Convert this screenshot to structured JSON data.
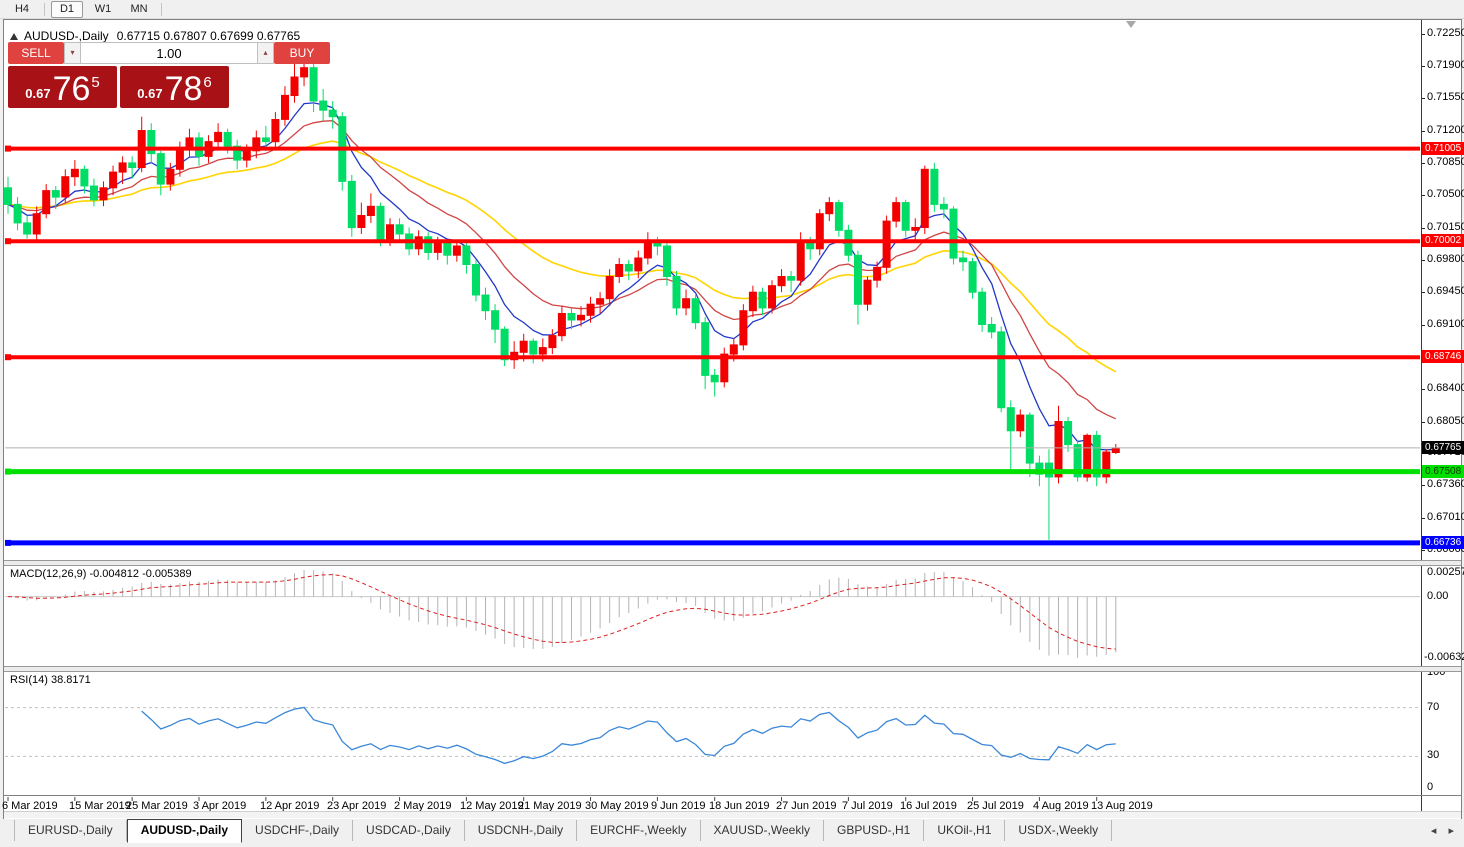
{
  "toolbar": {
    "timeframes": [
      {
        "label": "H4",
        "active": false
      },
      {
        "label": "D1",
        "active": true
      },
      {
        "label": "W1",
        "active": false
      },
      {
        "label": "MN",
        "active": false
      }
    ]
  },
  "title": {
    "symbol": "AUDUSD-,Daily",
    "ohlc": "0.67715 0.67807 0.67699 0.67765"
  },
  "trade_panel": {
    "sell_label": "SELL",
    "buy_label": "BUY",
    "volume": "1.00",
    "sell_price_prefix": "0.67",
    "sell_price_big": "76",
    "sell_price_sup": "5",
    "buy_price_prefix": "0.67",
    "buy_price_big": "78",
    "buy_price_sup": "6"
  },
  "indicators": {
    "macd_label": "MACD(12,26,9) -0.004812 -0.005389",
    "rsi_label": "RSI(14) 38.8171"
  },
  "tabs": {
    "items": [
      {
        "label": "EURUSD-,Daily",
        "active": false
      },
      {
        "label": "AUDUSD-,Daily",
        "active": true
      },
      {
        "label": "USDCHF-,Daily",
        "active": false
      },
      {
        "label": "USDCAD-,Daily",
        "active": false
      },
      {
        "label": "USDCNH-,Daily",
        "active": false
      },
      {
        "label": "EURCHF-,Weekly",
        "active": false
      },
      {
        "label": "XAUUSD-,Weekly",
        "active": false
      },
      {
        "label": "GBPUSD-,H1",
        "active": false
      },
      {
        "label": "UKOil-,H1",
        "active": false
      },
      {
        "label": "USDX-,Weekly",
        "active": false
      }
    ],
    "scroll_left": "◂",
    "scroll_right": "▸"
  },
  "chart_data": {
    "type": "candlestick",
    "symbol": "AUDUSD-",
    "timeframe": "Daily",
    "ohlc_display": {
      "open": 0.67715,
      "high": 0.67807,
      "low": 0.67699,
      "close": 0.67765
    },
    "bid": 0.67765,
    "ask": 0.67786,
    "up_color": "#f20000",
    "down_color": "#00dd66",
    "price_axis_ticks": [
      0.7225,
      0.719,
      0.7155,
      0.712,
      0.7085,
      0.705,
      0.7015,
      0.698,
      0.6945,
      0.691,
      0.684,
      0.6805,
      0.6771,
      0.6736,
      0.6701,
      0.6666
    ],
    "hlines": [
      {
        "price": 0.71005,
        "label": "0.71005",
        "color": "#ff0000",
        "text_color": "#ffffff",
        "width": 4
      },
      {
        "price": 0.70002,
        "label": "0.70002",
        "color": "#ff0000",
        "text_color": "#ffffff",
        "width": 4
      },
      {
        "price": 0.68746,
        "label": "0.68746",
        "color": "#ff0000",
        "text_color": "#ffffff",
        "width": 4
      },
      {
        "price": 0.67508,
        "label": "0.67508",
        "color": "#00e000",
        "text_color": "#103300",
        "width": 5
      },
      {
        "price": 0.66736,
        "label": "0.66736",
        "color": "#0000ff",
        "text_color": "#ffffff",
        "width": 5
      }
    ],
    "current_price_line": {
      "price": 0.67765,
      "label": "0.67765",
      "line_color": "#b0b0b0",
      "label_bg": "#000000",
      "text_color": "#ffffff"
    },
    "moving_averages": [
      {
        "name": "fast",
        "color": "#2038c8",
        "period": 7
      },
      {
        "name": "medium",
        "color": "#d04545",
        "period": 15
      },
      {
        "name": "slow",
        "color": "#ffd400",
        "period": 30
      }
    ],
    "candle_scale": 0.0001,
    "candles": [
      [
        7058,
        7070,
        7030,
        7040
      ],
      [
        7040,
        7048,
        7012,
        7020
      ],
      [
        7020,
        7028,
        7003,
        7008
      ],
      [
        7008,
        7038,
        7000,
        7030
      ],
      [
        7030,
        7062,
        7025,
        7055
      ],
      [
        7055,
        7060,
        7035,
        7048
      ],
      [
        7048,
        7078,
        7042,
        7070
      ],
      [
        7070,
        7088,
        7060,
        7078
      ],
      [
        7078,
        7082,
        7052,
        7060
      ],
      [
        7060,
        7068,
        7038,
        7045
      ],
      [
        7045,
        7065,
        7038,
        7058
      ],
      [
        7058,
        7082,
        7050,
        7075
      ],
      [
        7075,
        7092,
        7062,
        7085
      ],
      [
        7085,
        7092,
        7068,
        7080
      ],
      [
        7080,
        7135,
        7075,
        7120
      ],
      [
        7120,
        7128,
        7085,
        7095
      ],
      [
        7095,
        7098,
        7050,
        7062
      ],
      [
        7062,
        7085,
        7055,
        7078
      ],
      [
        7078,
        7108,
        7070,
        7100
      ],
      [
        7100,
        7122,
        7092,
        7112
      ],
      [
        7112,
        7118,
        7082,
        7092
      ],
      [
        7092,
        7115,
        7085,
        7108
      ],
      [
        7108,
        7128,
        7100,
        7118
      ],
      [
        7118,
        7122,
        7095,
        7103
      ],
      [
        7103,
        7110,
        7078,
        7088
      ],
      [
        7088,
        7105,
        7080,
        7098
      ],
      [
        7098,
        7120,
        7090,
        7112
      ],
      [
        7112,
        7125,
        7098,
        7108
      ],
      [
        7108,
        7140,
        7102,
        7132
      ],
      [
        7132,
        7168,
        7125,
        7158
      ],
      [
        7158,
        7196,
        7150,
        7178
      ],
      [
        7178,
        7205,
        7168,
        7188
      ],
      [
        7188,
        7192,
        7140,
        7152
      ],
      [
        7152,
        7165,
        7130,
        7142
      ],
      [
        7142,
        7152,
        7122,
        7135
      ],
      [
        7135,
        7140,
        7055,
        7065
      ],
      [
        7065,
        7072,
        7005,
        7015
      ],
      [
        7015,
        7042,
        7008,
        7028
      ],
      [
        7028,
        7052,
        7020,
        7038
      ],
      [
        7038,
        7042,
        6995,
        7002
      ],
      [
        7002,
        7025,
        6995,
        7018
      ],
      [
        7018,
        7025,
        6998,
        7008
      ],
      [
        7008,
        7015,
        6985,
        6992
      ],
      [
        6992,
        7012,
        6985,
        7005
      ],
      [
        7005,
        7010,
        6980,
        6988
      ],
      [
        6988,
        7005,
        6980,
        6998
      ],
      [
        6998,
        7002,
        6975,
        6985
      ],
      [
        6985,
        7002,
        6978,
        6995
      ],
      [
        6995,
        6998,
        6965,
        6975
      ],
      [
        6975,
        6980,
        6935,
        6942
      ],
      [
        6942,
        6950,
        6915,
        6925
      ],
      [
        6925,
        6932,
        6890,
        6905
      ],
      [
        6905,
        6908,
        6865,
        6872
      ],
      [
        6872,
        6892,
        6862,
        6880
      ],
      [
        6880,
        6900,
        6870,
        6892
      ],
      [
        6892,
        6895,
        6868,
        6878
      ],
      [
        6878,
        6895,
        6870,
        6885
      ],
      [
        6885,
        6905,
        6878,
        6898
      ],
      [
        6898,
        6930,
        6892,
        6922
      ],
      [
        6922,
        6928,
        6905,
        6915
      ],
      [
        6915,
        6930,
        6908,
        6920
      ],
      [
        6920,
        6940,
        6912,
        6932
      ],
      [
        6932,
        6945,
        6922,
        6938
      ],
      [
        6938,
        6970,
        6930,
        6962
      ],
      [
        6962,
        6982,
        6955,
        6975
      ],
      [
        6975,
        6980,
        6958,
        6968
      ],
      [
        6968,
        6990,
        6960,
        6982
      ],
      [
        6982,
        7010,
        6975,
        6998
      ],
      [
        6998,
        7005,
        6985,
        6995
      ],
      [
        6995,
        7000,
        6952,
        6962
      ],
      [
        6962,
        6968,
        6920,
        6928
      ],
      [
        6928,
        6948,
        6920,
        6938
      ],
      [
        6938,
        6942,
        6905,
        6912
      ],
      [
        6912,
        6918,
        6840,
        6855
      ],
      [
        6855,
        6862,
        6832,
        6848
      ],
      [
        6848,
        6885,
        6842,
        6878
      ],
      [
        6878,
        6895,
        6870,
        6888
      ],
      [
        6888,
        6932,
        6882,
        6925
      ],
      [
        6925,
        6952,
        6918,
        6945
      ],
      [
        6945,
        6950,
        6920,
        6928
      ],
      [
        6928,
        6958,
        6922,
        6952
      ],
      [
        6952,
        6970,
        6945,
        6962
      ],
      [
        6962,
        6968,
        6945,
        6958
      ],
      [
        6958,
        7010,
        6952,
        7000
      ],
      [
        7000,
        7005,
        6980,
        6992
      ],
      [
        6992,
        7035,
        6985,
        7030
      ],
      [
        7030,
        7048,
        7022,
        7042
      ],
      [
        7042,
        7045,
        7005,
        7012
      ],
      [
        7012,
        7018,
        6978,
        6985
      ],
      [
        6985,
        6990,
        6910,
        6932
      ],
      [
        6932,
        6962,
        6925,
        6958
      ],
      [
        6958,
        6978,
        6950,
        6972
      ],
      [
        6972,
        7028,
        6965,
        7022
      ],
      [
        7022,
        7048,
        7015,
        7042
      ],
      [
        7042,
        7045,
        7005,
        7012
      ],
      [
        7012,
        7025,
        7000,
        7015
      ],
      [
        7015,
        7082,
        7008,
        7078
      ],
      [
        7078,
        7085,
        7032,
        7040
      ],
      [
        7040,
        7048,
        7025,
        7035
      ],
      [
        7035,
        7038,
        6975,
        6982
      ],
      [
        6982,
        6990,
        6968,
        6978
      ],
      [
        6978,
        6982,
        6938,
        6945
      ],
      [
        6945,
        6950,
        6902,
        6910
      ],
      [
        6910,
        6918,
        6895,
        6902
      ],
      [
        6902,
        6908,
        6815,
        6820
      ],
      [
        6820,
        6828,
        6750,
        6795
      ],
      [
        6795,
        6818,
        6788,
        6812
      ],
      [
        6812,
        6815,
        6745,
        6760
      ],
      [
        6760,
        6768,
        6735,
        6748
      ],
      [
        6760,
        6775,
        6677,
        6745
      ],
      [
        6745,
        6822,
        6738,
        6805
      ],
      [
        6805,
        6810,
        6772,
        6780
      ],
      [
        6780,
        6785,
        6740,
        6745
      ],
      [
        6745,
        6792,
        6740,
        6790
      ],
      [
        6790,
        6795,
        6735,
        6745
      ],
      [
        6745,
        6775,
        6738,
        6772
      ],
      [
        6771.5,
        6780.7,
        6769.9,
        6776.5
      ]
    ],
    "date_ticks": [
      [
        "6 Mar 2019",
        0
      ],
      [
        "15 Mar 2019",
        7
      ],
      [
        "25 Mar 2019",
        13
      ],
      [
        "3 Apr 2019",
        20
      ],
      [
        "12 Apr 2019",
        27
      ],
      [
        "23 Apr 2019",
        34
      ],
      [
        "2 May 2019",
        41
      ],
      [
        "12 May 2019",
        48
      ],
      [
        "21 May 2019",
        54
      ],
      [
        "30 May 2019",
        61
      ],
      [
        "9 Jun 2019",
        68
      ],
      [
        "18 Jun 2019",
        74
      ],
      [
        "27 Jun 2019",
        81
      ],
      [
        "7 Jul 2019",
        88
      ],
      [
        "16 Jul 2019",
        94
      ],
      [
        "25 Jul 2019",
        101
      ],
      [
        "4 Aug 2019",
        108
      ],
      [
        "13 Aug 2019",
        114
      ]
    ],
    "macd": {
      "params": [
        12,
        26,
        9
      ],
      "value": -0.004812,
      "signal_value": -0.005389,
      "axis_labels": [
        "0.002574",
        "0.00",
        "-0.006326"
      ],
      "vmax": 0.002574,
      "vmin": -0.006326,
      "hist_color": "#b4b4b4",
      "signal_color": "#dd2222",
      "zero_line_color": "#c8c8c8"
    },
    "rsi": {
      "period": 14,
      "value": 38.8171,
      "axis_labels": [
        "100",
        "70",
        "30",
        "0"
      ],
      "levels": [
        70,
        30
      ],
      "level_color": "#c0c0c0",
      "color": "#3a87d8"
    }
  }
}
